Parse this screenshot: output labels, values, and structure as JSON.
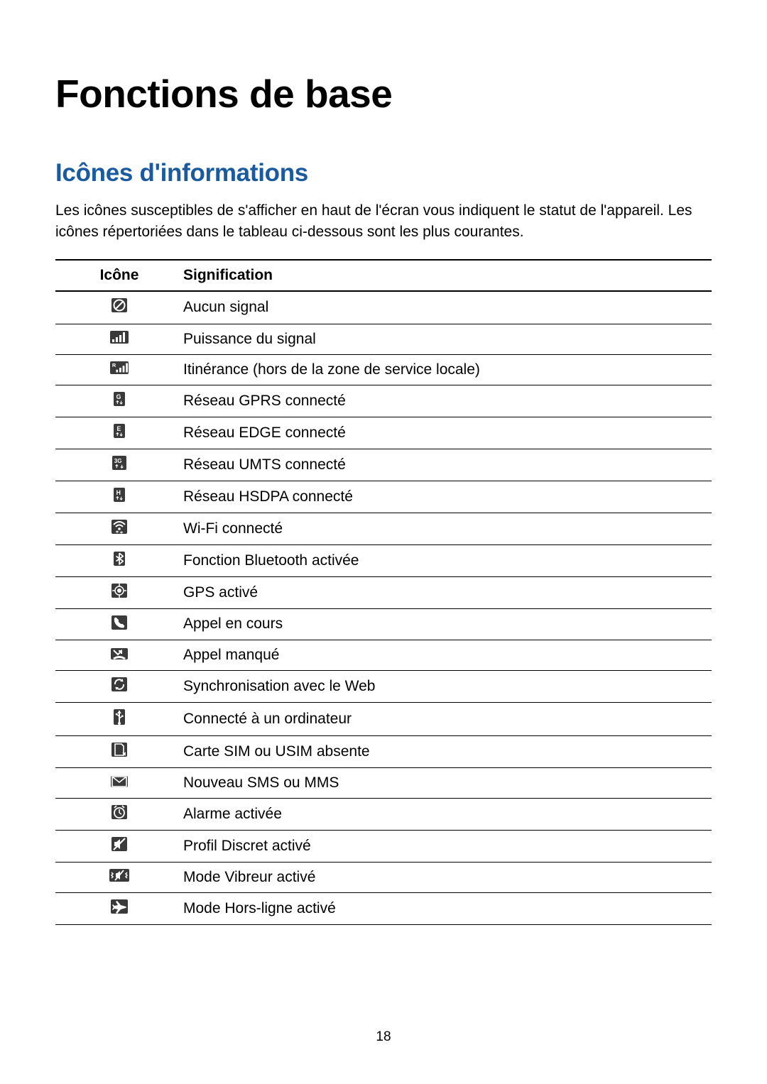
{
  "colors": {
    "heading2": "#1a5a9e",
    "text": "#000000",
    "icon_bg": "#3a3a3a",
    "icon_fg": "#ffffff",
    "border": "#000000",
    "background": "#ffffff"
  },
  "typography": {
    "h1_fontsize": 55,
    "h2_fontsize": 35,
    "body_fontsize": 21,
    "pagenum_fontsize": 19
  },
  "page_number": "18",
  "title": "Fonctions de base",
  "subtitle": "Icônes d'informations",
  "intro": "Les icônes susceptibles de s'afficher en haut de l'écran vous indiquent le statut de l'appareil. Les icônes répertoriées dans le tableau ci-dessous sont les plus courantes.",
  "table": {
    "header_icon": "Icône",
    "header_sig": "Signification",
    "rows": [
      {
        "icon": "no-signal",
        "sig": "Aucun signal"
      },
      {
        "icon": "signal",
        "sig": "Puissance du signal"
      },
      {
        "icon": "roaming",
        "sig": "Itinérance (hors de la zone de service locale)"
      },
      {
        "icon": "gprs",
        "sig": "Réseau GPRS connecté"
      },
      {
        "icon": "edge",
        "sig": "Réseau EDGE connecté"
      },
      {
        "icon": "umts",
        "sig": "Réseau UMTS connecté"
      },
      {
        "icon": "hsdpa",
        "sig": "Réseau HSDPA connecté"
      },
      {
        "icon": "wifi",
        "sig": "Wi-Fi connecté"
      },
      {
        "icon": "bluetooth",
        "sig": "Fonction Bluetooth activée"
      },
      {
        "icon": "gps",
        "sig": "GPS activé"
      },
      {
        "icon": "call",
        "sig": "Appel en cours"
      },
      {
        "icon": "missed-call",
        "sig": "Appel manqué"
      },
      {
        "icon": "sync",
        "sig": "Synchronisation avec le Web"
      },
      {
        "icon": "usb",
        "sig": "Connecté à un ordinateur"
      },
      {
        "icon": "no-sim",
        "sig": "Carte SIM ou USIM absente"
      },
      {
        "icon": "sms",
        "sig": "Nouveau SMS ou MMS"
      },
      {
        "icon": "alarm",
        "sig": "Alarme activée"
      },
      {
        "icon": "silent",
        "sig": "Profil Discret activé"
      },
      {
        "icon": "vibrate",
        "sig": "Mode Vibreur activé"
      },
      {
        "icon": "airplane",
        "sig": "Mode Hors-ligne activé"
      }
    ]
  }
}
